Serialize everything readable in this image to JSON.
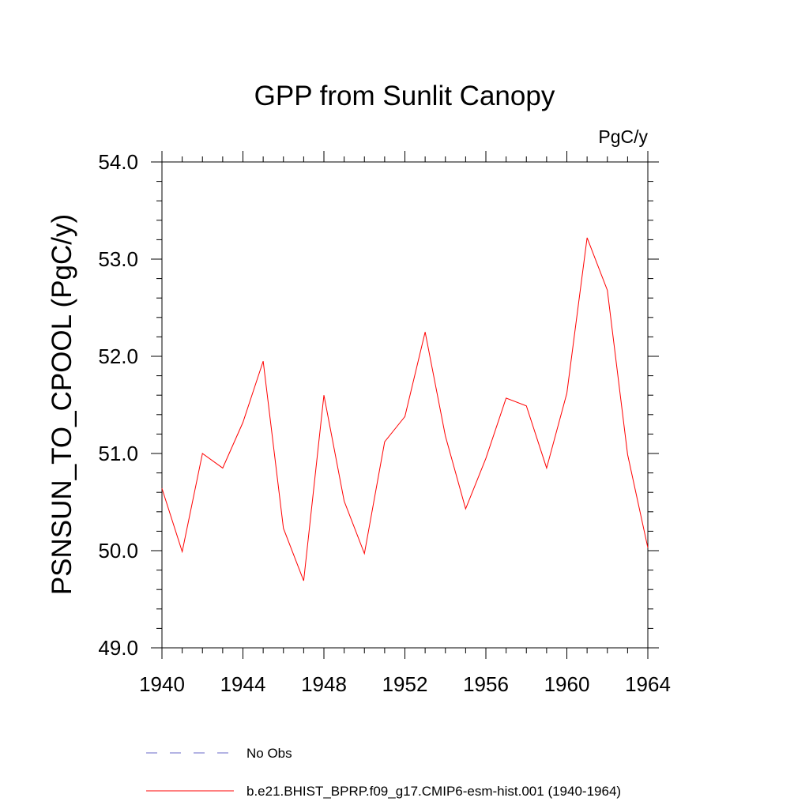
{
  "chart_data": {
    "type": "line",
    "title": "GPP from Sunlit Canopy",
    "units_label": "PgC/y",
    "xlabel": "",
    "ylabel": "PSNSUN_TO_CPOOL  (PgC/y)",
    "xlim": [
      1940,
      1964
    ],
    "ylim": [
      49.0,
      54.0
    ],
    "x_ticks": [
      1940,
      1944,
      1948,
      1952,
      1956,
      1960,
      1964
    ],
    "x_tick_labels": [
      "1940",
      "1944",
      "1948",
      "1952",
      "1956",
      "1960",
      "1964"
    ],
    "y_ticks": [
      49.0,
      50.0,
      51.0,
      52.0,
      53.0,
      54.0
    ],
    "y_tick_labels": [
      "49.0",
      "50.0",
      "51.0",
      "52.0",
      "53.0",
      "54.0"
    ],
    "grid": false,
    "legend_position": "bottom",
    "series": [
      {
        "name": "b.e21.BHIST_BPRP.f09_g17.CMIP6-esm-hist.001 (1940-1964)",
        "color": "#ff0000",
        "style": "solid",
        "x": [
          1940,
          1941,
          1942,
          1943,
          1944,
          1945,
          1946,
          1947,
          1948,
          1949,
          1950,
          1951,
          1952,
          1953,
          1954,
          1955,
          1956,
          1957,
          1958,
          1959,
          1960,
          1961,
          1962,
          1963,
          1964
        ],
        "values": [
          50.64,
          49.99,
          51.0,
          50.85,
          51.32,
          51.95,
          50.23,
          49.69,
          51.6,
          50.51,
          49.97,
          51.12,
          51.38,
          52.25,
          51.18,
          50.43,
          50.95,
          51.57,
          51.49,
          50.85,
          51.62,
          53.22,
          52.68,
          50.99,
          50.03
        ]
      },
      {
        "name": "No Obs",
        "color": "#6a6ac8",
        "style": "dashed",
        "x": [],
        "values": []
      }
    ]
  }
}
